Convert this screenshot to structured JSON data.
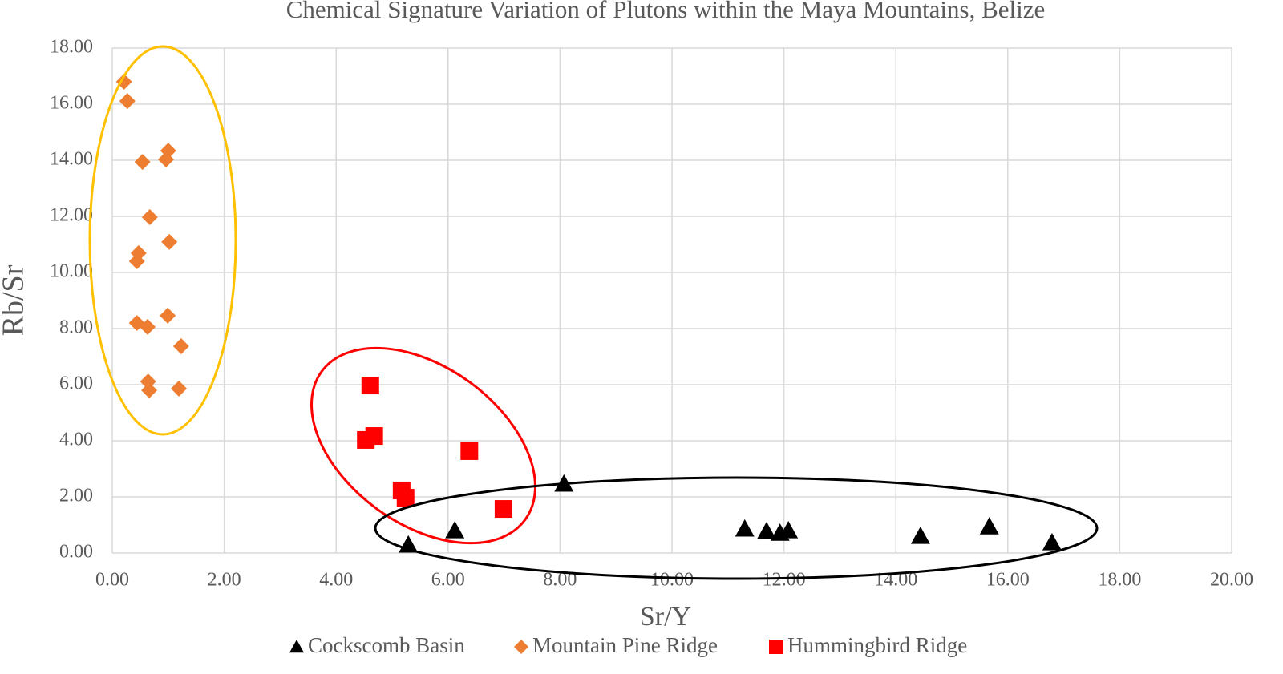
{
  "chart_data": {
    "type": "scatter",
    "title": "Chemical Signature Variation of Plutons within the Maya Mountains, Belize",
    "x_label": "Sr/Y",
    "y_label": "Rb/Sr",
    "xlim": [
      0,
      20
    ],
    "xticks": [
      {
        "value": 0,
        "label": "0.00"
      },
      {
        "value": 2,
        "label": "2.00"
      },
      {
        "value": 4,
        "label": "4.00"
      },
      {
        "value": 6,
        "label": "6.00"
      },
      {
        "value": 8,
        "label": "8.00"
      },
      {
        "value": 10,
        "label": "10.00"
      },
      {
        "value": 12,
        "label": "12.00"
      },
      {
        "value": 14,
        "label": "14.00"
      },
      {
        "value": 16,
        "label": "16.00"
      },
      {
        "value": 18,
        "label": "18.00"
      },
      {
        "value": 20,
        "label": "20.00"
      }
    ],
    "ylim": [
      0,
      18
    ],
    "yticks": [
      {
        "value": 0,
        "label": "0.00"
      },
      {
        "value": 2,
        "label": "2.00"
      },
      {
        "value": 4,
        "label": "4.00"
      },
      {
        "value": 6,
        "label": "6.00"
      },
      {
        "value": 8,
        "label": "8.00"
      },
      {
        "value": 10,
        "label": "10.00"
      },
      {
        "value": 12,
        "label": "12.00"
      },
      {
        "value": 14,
        "label": "14.00"
      },
      {
        "value": 16,
        "label": "16.00"
      },
      {
        "value": 18,
        "label": "18.00"
      }
    ],
    "grid": true,
    "series": [
      {
        "name": "Cockscomb Basin",
        "color": "#000000",
        "marker": "triangle",
        "x": [
          5.29,
          6.12,
          8.07,
          11.3,
          11.69,
          11.93,
          12.08,
          14.44,
          15.67,
          16.79
        ],
        "values": [
          0.29,
          0.8,
          2.46,
          0.86,
          0.77,
          0.71,
          0.8,
          0.6,
          0.94,
          0.37
        ]
      },
      {
        "name": "Mountain Pine Ridge",
        "color": "#ed7d31",
        "marker": "diamond",
        "x": [
          0.21,
          0.27,
          1.0,
          0.96,
          0.54,
          0.67,
          1.02,
          0.47,
          0.44,
          0.44,
          0.63,
          0.99,
          1.23,
          0.64,
          0.66,
          1.19
        ],
        "values": [
          16.8,
          16.11,
          14.34,
          14.03,
          13.94,
          11.97,
          11.09,
          10.69,
          10.4,
          8.2,
          8.06,
          8.46,
          7.37,
          6.11,
          5.8,
          5.86
        ]
      },
      {
        "name": "Hummingbird Ridge",
        "color": "#ff0000",
        "marker": "square",
        "x": [
          4.61,
          4.53,
          4.68,
          6.38,
          5.17,
          5.24,
          6.99
        ],
        "values": [
          5.97,
          4.03,
          4.17,
          3.63,
          2.23,
          1.97,
          1.57
        ]
      }
    ]
  }
}
